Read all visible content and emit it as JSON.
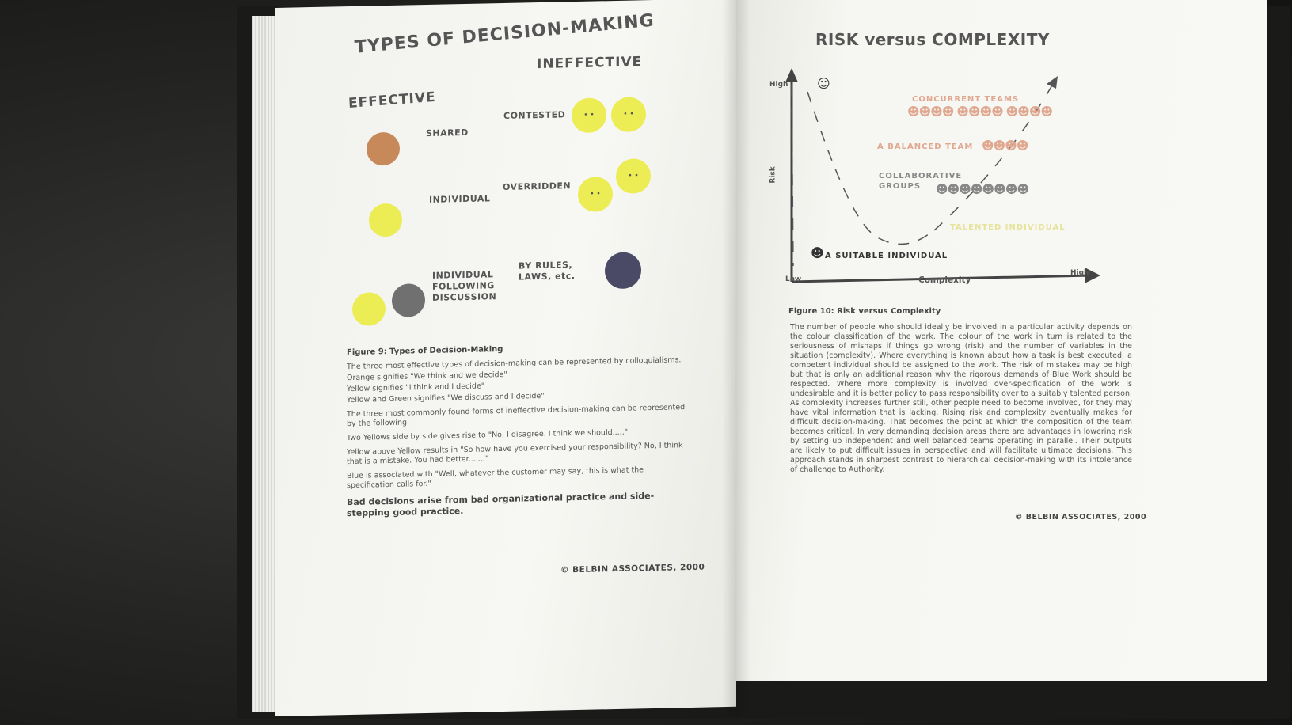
{
  "left_page": {
    "title": "TYPES OF DECISION-MAKING",
    "effective_label": "EFFECTIVE",
    "ineffective_label": "INEFFECTIVE",
    "rows": [
      {
        "effective_label": "SHARED",
        "ineffective_label": "CONTESTED"
      },
      {
        "effective_label": "INDIVIDUAL",
        "ineffective_label": "OVERRIDDEN"
      },
      {
        "effective_label": "INDIVIDUAL FOLLOWING DISCUSSION",
        "ineffective_label": "BY RULES, LAWS, etc."
      }
    ],
    "colors": {
      "orange": "#c8895a",
      "yellow": "#ecec54",
      "green": "#707070",
      "blue": "#4a4a66"
    },
    "caption": "Figure 9:  Types of Decision-Making",
    "paragraphs": [
      "The three most effective types of decision-making can be represented by colloquialisms.",
      "Orange signifies \"We think and we decide\"",
      "Yellow signifies \"I think and I decide\"",
      "Yellow and Green signifies \"We discuss and I decide\"",
      "The three most commonly found forms of ineffective decision-making can be represented by the following",
      "Two Yellows side by side gives rise to \"No, I disagree.  I think we should.....\"",
      "Yellow above Yellow results in  \"So how have you exercised your responsibility? No, I think that is a mistake.  You had better.......\"",
      "Blue is associated with \"Well, whatever the customer may say, this is what the specification calls for.\""
    ],
    "bold_statement": "Bad decisions arise from bad organizational practice and side-stepping good practice.",
    "copyright": "© BELBIN ASSOCIATES, 2000"
  },
  "right_page": {
    "title": "RISK versus COMPLEXITY",
    "chart_data": {
      "type": "line",
      "xlabel": "Complexity",
      "ylabel": "Risk",
      "y_high_label": "High",
      "x_low_label": "Low",
      "x_high_label": "High",
      "labels": [
        {
          "text": "CONCURRENT TEAMS",
          "color": "#e0a890"
        },
        {
          "text": "A BALANCED TEAM",
          "color": "#e0a890"
        },
        {
          "text": "COLLABORATIVE GROUPS",
          "color": "#888888"
        },
        {
          "text": "TALENTED INDIVIDUAL",
          "color": "#e6e39a"
        },
        {
          "text": "A SUITABLE INDIVIDUAL",
          "color": "#333333"
        }
      ]
    },
    "caption": "Figure 10:  Risk versus Complexity",
    "body": "The number of people who should ideally be involved in a particular activity depends on the colour classification of the work.  The colour of the work in turn is related to the seriousness of mishaps if things go wrong (risk) and the number of variables in the situation (complexity).  Where everything is known about how a task is best executed, a competent individual should be assigned to the work.  The risk of mistakes may be high but that is only an additional reason why the rigorous demands of Blue Work should be respected.  Where more complexity is involved over-specification of the work is undesirable and it is better policy to pass responsibility over to a suitably talented person.  As complexity increases further still, other people need to become involved, for they may have vital information that is lacking.  Rising risk and complexity eventually makes for difficult decision-making.  That becomes the point at which the composition of the team becomes critical.  In very demanding decision areas there are advantages in lowering risk by setting up independent and well balanced teams operating in parallel.  Their outputs are likely to put difficult issues in perspective and will facilitate ultimate decisions.  This approach stands in sharpest contrast to hierarchical decision-making with its intolerance of challenge to Authority.",
    "copyright": "© BELBIN ASSOCIATES, 2000"
  }
}
